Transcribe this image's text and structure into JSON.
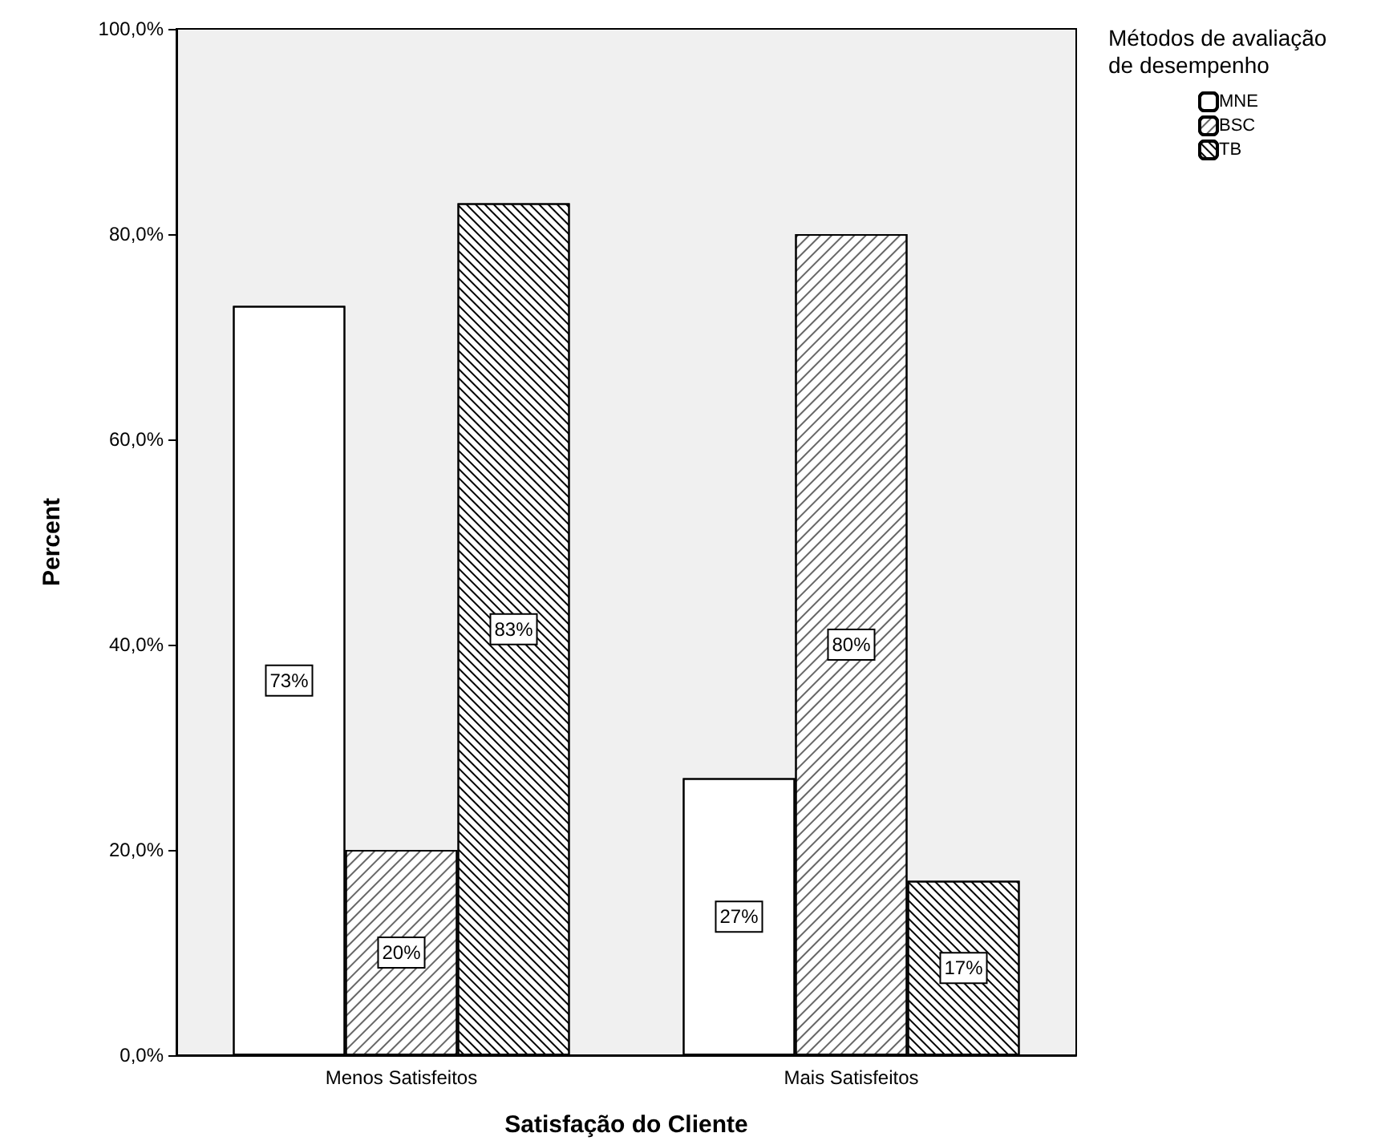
{
  "chart_data": {
    "type": "bar",
    "xlabel": "Satisfação do Cliente",
    "ylabel": "Percent",
    "legend_title": "Métodos de avaliação de desempenho",
    "categories": [
      "Menos Satisfeitos",
      "Mais Satisfeitos"
    ],
    "series": [
      {
        "name": "MNE",
        "color": "#ffffff",
        "values": [
          73,
          27
        ],
        "value_labels": [
          "73%",
          "27%"
        ]
      },
      {
        "name": "BSC",
        "color": "#ffffff",
        "values": [
          20,
          80
        ],
        "value_labels": [
          "20%",
          "80%"
        ]
      },
      {
        "name": "TB",
        "color": "#ffffff",
        "values": [
          83,
          17
        ],
        "value_labels": [
          "83%",
          "17%"
        ]
      }
    ],
    "ylim": [
      0,
      100
    ],
    "yticks": [
      {
        "value": 0,
        "label": "0,0%"
      },
      {
        "value": 20,
        "label": "20,0%"
      },
      {
        "value": 40,
        "label": "40,0%"
      },
      {
        "value": 60,
        "label": "60,0%"
      },
      {
        "value": 80,
        "label": "80,0%"
      },
      {
        "value": 100,
        "label": "100,0%"
      }
    ],
    "grid": false,
    "legend": "top right"
  }
}
